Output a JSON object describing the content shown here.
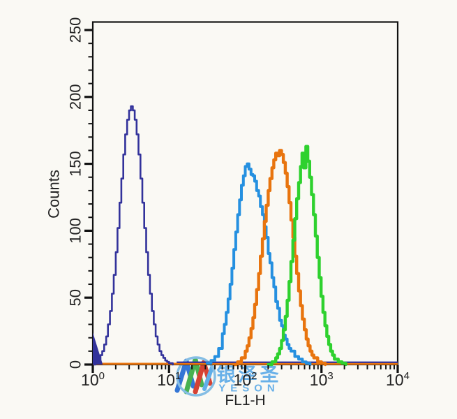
{
  "figure": {
    "bg": "#faf9f4",
    "axis_color": "#111111",
    "label_color": "#232323"
  },
  "chart_data": {
    "type": "line",
    "subtype": "flow-cytometry-histogram-overlay",
    "title": "",
    "xlabel": "FL1-H",
    "ylabel": "Counts",
    "x_scale": "log",
    "xlim": [
      1,
      10000
    ],
    "ylim": [
      0,
      256
    ],
    "x_major_tick_exponents": [
      0,
      1,
      2,
      3,
      4
    ],
    "x_tick_base": "10",
    "y_major_ticks": [
      0,
      50,
      100,
      150,
      200,
      250
    ],
    "y_minor_step": 10,
    "grid": false,
    "legend": "none",
    "peaks": [
      {
        "series": "dark-blue",
        "x": 3.2,
        "count": 193
      },
      {
        "series": "light-blue",
        "x": 106,
        "count": 150
      },
      {
        "series": "orange",
        "x": 282,
        "count": 160
      },
      {
        "series": "green",
        "x": 624,
        "count": 163
      }
    ],
    "origin_spike": {
      "x": 1,
      "height": 24,
      "x_end": 1.35,
      "color": "#32329b"
    },
    "baselines": [
      {
        "name": "orange-axis-baseline",
        "color": "#e97612",
        "count": 0.5,
        "x1": 1,
        "x2": 10000,
        "width": 3
      },
      {
        "name": "dark-blue-baseline",
        "color": "#32329b",
        "count": 1.7,
        "x1": 12.6,
        "x2": 10000,
        "width": 2.2
      }
    ],
    "series": [
      {
        "name": "dark-blue",
        "color": "#32329b",
        "width": 2.6,
        "points": [
          [
            1.05,
            0
          ],
          [
            1.08,
            1
          ],
          [
            1.12,
            2
          ],
          [
            1.19,
            3
          ],
          [
            1.26,
            7
          ],
          [
            1.33,
            10
          ],
          [
            1.41,
            15
          ],
          [
            1.5,
            21
          ],
          [
            1.58,
            30
          ],
          [
            1.68,
            40
          ],
          [
            1.78,
            53
          ],
          [
            1.88,
            67
          ],
          [
            2.0,
            84
          ],
          [
            2.11,
            102
          ],
          [
            2.24,
            121
          ],
          [
            2.37,
            139
          ],
          [
            2.51,
            157
          ],
          [
            2.66,
            172
          ],
          [
            2.82,
            183
          ],
          [
            2.99,
            190
          ],
          [
            3.16,
            193
          ],
          [
            3.35,
            190
          ],
          [
            3.55,
            183
          ],
          [
            3.76,
            172
          ],
          [
            3.98,
            157
          ],
          [
            4.22,
            139
          ],
          [
            4.47,
            121
          ],
          [
            4.73,
            102
          ],
          [
            5.01,
            84
          ],
          [
            5.31,
            67
          ],
          [
            5.62,
            53
          ],
          [
            5.96,
            40
          ],
          [
            6.31,
            30
          ],
          [
            6.68,
            21
          ],
          [
            7.08,
            15
          ],
          [
            7.5,
            10
          ],
          [
            7.94,
            7
          ],
          [
            8.41,
            5
          ],
          [
            8.91,
            3
          ],
          [
            9.44,
            2
          ],
          [
            10.0,
            1
          ],
          [
            11.2,
            0
          ]
        ]
      },
      {
        "name": "light-blue",
        "color": "#2590e0",
        "width": 4,
        "points": [
          [
            31.6,
            1
          ],
          [
            35.5,
            3
          ],
          [
            39.8,
            6
          ],
          [
            44.7,
            12
          ],
          [
            50.1,
            23
          ],
          [
            53.1,
            30
          ],
          [
            56.2,
            39
          ],
          [
            59.6,
            49
          ],
          [
            63.1,
            60
          ],
          [
            66.8,
            72
          ],
          [
            70.8,
            86
          ],
          [
            75.0,
            99
          ],
          [
            79.4,
            112
          ],
          [
            84.1,
            123
          ],
          [
            89.1,
            134
          ],
          [
            94.4,
            141
          ],
          [
            100,
            148
          ],
          [
            106,
            150
          ],
          [
            112,
            146
          ],
          [
            119,
            142
          ],
          [
            126,
            141
          ],
          [
            133,
            137
          ],
          [
            141,
            130
          ],
          [
            150,
            126
          ],
          [
            158,
            118
          ],
          [
            168,
            112
          ],
          [
            178,
            103
          ],
          [
            188,
            95
          ],
          [
            200,
            83
          ],
          [
            211,
            76
          ],
          [
            224,
            65
          ],
          [
            237,
            58
          ],
          [
            251,
            47
          ],
          [
            266,
            42
          ],
          [
            282,
            33
          ],
          [
            299,
            29
          ],
          [
            316,
            22
          ],
          [
            335,
            19
          ],
          [
            355,
            15
          ],
          [
            376,
            12
          ],
          [
            398,
            10
          ],
          [
            447,
            6
          ],
          [
            501,
            4
          ],
          [
            562,
            2
          ],
          [
            631,
            1
          ],
          [
            708,
            0
          ]
        ]
      },
      {
        "name": "orange",
        "color": "#e8740e",
        "width": 4.4,
        "points": [
          [
            70.8,
            0
          ],
          [
            79.4,
            2
          ],
          [
            89.1,
            5
          ],
          [
            100,
            10
          ],
          [
            106,
            14
          ],
          [
            112,
            20
          ],
          [
            119,
            27
          ],
          [
            126,
            35
          ],
          [
            133,
            45
          ],
          [
            141,
            56
          ],
          [
            150,
            68
          ],
          [
            158,
            81
          ],
          [
            168,
            94
          ],
          [
            178,
            107
          ],
          [
            188,
            119
          ],
          [
            200,
            130
          ],
          [
            211,
            139
          ],
          [
            224,
            147
          ],
          [
            237,
            153
          ],
          [
            251,
            158
          ],
          [
            266,
            156
          ],
          [
            282,
            160
          ],
          [
            299,
            157
          ],
          [
            316,
            151
          ],
          [
            335,
            143
          ],
          [
            355,
            133
          ],
          [
            376,
            121
          ],
          [
            398,
            108
          ],
          [
            422,
            95
          ],
          [
            447,
            81
          ],
          [
            473,
            68
          ],
          [
            501,
            55
          ],
          [
            531,
            44
          ],
          [
            562,
            34
          ],
          [
            596,
            26
          ],
          [
            631,
            19
          ],
          [
            668,
            14
          ],
          [
            708,
            10
          ],
          [
            750,
            7
          ],
          [
            794,
            5
          ],
          [
            891,
            2
          ],
          [
            1000,
            1
          ],
          [
            1122,
            0
          ]
        ]
      },
      {
        "name": "green",
        "color": "#2ed12e",
        "width": 4.4,
        "points": [
          [
            200,
            0
          ],
          [
            224,
            2
          ],
          [
            251,
            5
          ],
          [
            266,
            8
          ],
          [
            282,
            12
          ],
          [
            299,
            18
          ],
          [
            316,
            26
          ],
          [
            335,
            36
          ],
          [
            355,
            48
          ],
          [
            376,
            62
          ],
          [
            398,
            77
          ],
          [
            422,
            93
          ],
          [
            447,
            109
          ],
          [
            473,
            124
          ],
          [
            501,
            136
          ],
          [
            531,
            148
          ],
          [
            556,
            158
          ],
          [
            582,
            147
          ],
          [
            624,
            163
          ],
          [
            661,
            152
          ],
          [
            700,
            140
          ],
          [
            741,
            127
          ],
          [
            785,
            112
          ],
          [
            832,
            96
          ],
          [
            881,
            80
          ],
          [
            933,
            65
          ],
          [
            989,
            51
          ],
          [
            1047,
            39
          ],
          [
            1109,
            29
          ],
          [
            1175,
            21
          ],
          [
            1245,
            15
          ],
          [
            1318,
            10
          ],
          [
            1396,
            7
          ],
          [
            1479,
            4
          ],
          [
            1660,
            2
          ],
          [
            1862,
            1
          ],
          [
            2089,
            0
          ]
        ]
      }
    ]
  },
  "watermark": {
    "chinese": "银泽圣",
    "latin": "YESON",
    "text_color": "#68b0e8",
    "circle_color": "#7fbbe4",
    "ribbon_colors": [
      "#2a6fd4",
      "#3fae49",
      "#d4392a",
      "#58aae8"
    ]
  }
}
